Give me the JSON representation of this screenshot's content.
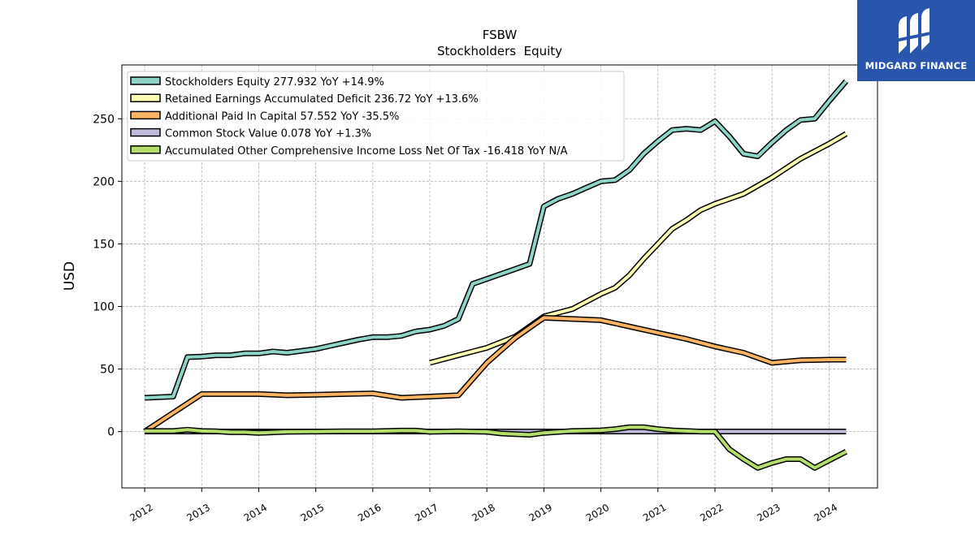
{
  "brand": {
    "name": "MIDGARD FINANCE",
    "bg": "#2a55ad"
  },
  "chart_data": {
    "type": "line",
    "title": "FSBW",
    "subtitle": "Stockholders  Equity",
    "xlabel": "",
    "ylabel": "USD",
    "xlim": [
      2011.6,
      2024.85
    ],
    "ylim": [
      -45,
      293
    ],
    "y_ticks": [
      0,
      50,
      100,
      150,
      200,
      250
    ],
    "x_ticks": [
      2012,
      2013,
      2014,
      2015,
      2016,
      2017,
      2018,
      2019,
      2020,
      2021,
      2022,
      2023,
      2024
    ],
    "grid": true,
    "legend_position": "top-left",
    "series": [
      {
        "name": "Stockholders Equity  277.932 YoY +14.9%",
        "color": "#8dd3c7",
        "x": [
          2012.0,
          2012.25,
          2012.5,
          2012.75,
          2013.0,
          2013.25,
          2013.5,
          2013.75,
          2014.0,
          2014.25,
          2014.5,
          2014.75,
          2015.0,
          2015.25,
          2015.5,
          2015.75,
          2016.0,
          2016.25,
          2016.5,
          2016.75,
          2017.0,
          2017.25,
          2017.5,
          2017.75,
          2018.0,
          2018.25,
          2018.5,
          2018.75,
          2019.0,
          2019.25,
          2019.5,
          2019.75,
          2020.0,
          2020.25,
          2020.5,
          2020.75,
          2021.0,
          2021.25,
          2021.5,
          2021.75,
          2022.0,
          2022.25,
          2022.5,
          2022.75,
          2023.0,
          2023.25,
          2023.5,
          2023.75,
          2024.0,
          2024.3
        ],
        "y": [
          27,
          27.5,
          28,
          59.5,
          60,
          61,
          61,
          62.5,
          62.5,
          64,
          63,
          64.5,
          66,
          68.5,
          71,
          73.5,
          75.5,
          75.5,
          76.5,
          80,
          81.5,
          84.5,
          90,
          118,
          122,
          126,
          130,
          134,
          180,
          186,
          190,
          195,
          200,
          201,
          209,
          222,
          232,
          241,
          242,
          241,
          248,
          236,
          222,
          220,
          231,
          241,
          249,
          250,
          264,
          280
        ]
      },
      {
        "name": "Retained Earnings Accumulated Deficit  236.72 YoY +13.6%",
        "color": "#ffffb3",
        "x": [
          2017.0,
          2017.5,
          2018.0,
          2018.5,
          2019.0,
          2019.5,
          2020.0,
          2020.25,
          2020.5,
          2020.75,
          2021.0,
          2021.25,
          2021.5,
          2021.75,
          2022.0,
          2022.5,
          2023.0,
          2023.5,
          2024.0,
          2024.3
        ],
        "y": [
          55,
          61,
          67,
          76,
          92,
          98,
          110,
          115,
          125,
          138,
          150,
          162,
          169,
          177,
          182,
          190,
          203,
          218,
          230,
          238
        ]
      },
      {
        "name": "Additional Paid In Capital  57.552 YoY -35.5%",
        "color": "#fdb462",
        "x": [
          2012.0,
          2012.5,
          2013.0,
          2013.5,
          2014.0,
          2014.5,
          2015.0,
          2015.5,
          2016.0,
          2016.5,
          2017.0,
          2017.5,
          2018.0,
          2018.5,
          2019.0,
          2019.5,
          2020.0,
          2020.5,
          2021.0,
          2021.5,
          2022.0,
          2022.5,
          2023.0,
          2023.5,
          2024.0,
          2024.3
        ],
        "y": [
          0,
          15,
          30,
          30,
          30,
          29,
          29.5,
          30,
          30.5,
          27,
          28,
          29,
          55,
          75,
          91,
          90,
          89,
          84,
          79,
          74,
          68,
          63,
          55,
          57,
          57.5,
          57.5
        ]
      },
      {
        "name": "Common Stock Value  0.078 YoY +1.3%",
        "color": "#bebada",
        "x": [
          2012.0,
          2024.3
        ],
        "y": [
          0.08,
          0.08
        ]
      },
      {
        "name": "Accumulated Other Comprehensive Income Loss Net Of Tax  -16.418 YoY N/A",
        "color": "#b3de69",
        "x": [
          2012.0,
          2012.25,
          2012.5,
          2012.75,
          2013.0,
          2013.25,
          2013.5,
          2013.75,
          2014.0,
          2014.5,
          2015.0,
          2015.5,
          2016.0,
          2016.5,
          2016.75,
          2017.0,
          2017.5,
          2018.0,
          2018.25,
          2018.5,
          2018.75,
          2019.0,
          2019.5,
          2020.0,
          2020.25,
          2020.5,
          2020.75,
          2021.0,
          2021.25,
          2021.5,
          2021.75,
          2022.0,
          2022.25,
          2022.5,
          2022.75,
          2023.0,
          2023.25,
          2023.5,
          2023.75,
          2024.0,
          2024.3
        ],
        "y": [
          0.5,
          0.5,
          0.5,
          1.5,
          0.5,
          0.3,
          -0.5,
          -0.5,
          -1,
          -0.2,
          0,
          0.2,
          0.2,
          0.8,
          0.8,
          -0.2,
          0.2,
          -0.2,
          -1.5,
          -2,
          -2.5,
          -1,
          0.5,
          1,
          2,
          3.5,
          3.5,
          2,
          1,
          0.5,
          0,
          0,
          -14,
          -22,
          -29,
          -25,
          -22,
          -22,
          -29,
          -23,
          -16
        ]
      }
    ]
  }
}
